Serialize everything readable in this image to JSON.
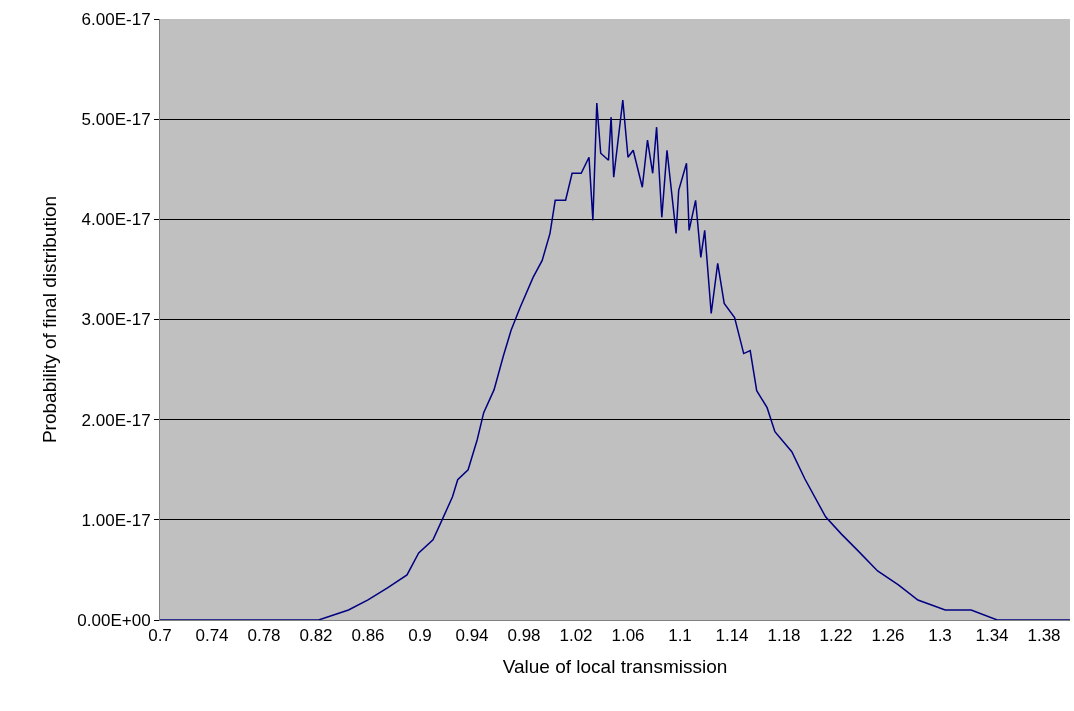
{
  "chart_data": {
    "type": "line",
    "xlabel": "Value of local transmission",
    "ylabel": "Probability of final distribution",
    "x": [
      0.7,
      0.71,
      0.74,
      0.777,
      0.815,
      0.822,
      0.845,
      0.86,
      0.875,
      0.89,
      0.899,
      0.91,
      0.917,
      0.925,
      0.929,
      0.937,
      0.944,
      0.949,
      0.957,
      0.964,
      0.97,
      0.977,
      0.987,
      0.994,
      1.0,
      1.004,
      1.012,
      1.017,
      1.024,
      1.03,
      1.033,
      1.036,
      1.039,
      1.045,
      1.047,
      1.049,
      1.056,
      1.06,
      1.064,
      1.071,
      1.075,
      1.079,
      1.082,
      1.086,
      1.09,
      1.097,
      1.099,
      1.105,
      1.107,
      1.112,
      1.116,
      1.119,
      1.124,
      1.129,
      1.134,
      1.142,
      1.149,
      1.154,
      1.159,
      1.167,
      1.173,
      1.186,
      1.196,
      1.212,
      1.224,
      1.237,
      1.252,
      1.268,
      1.283,
      1.304,
      1.324,
      1.344,
      1.37,
      1.391,
      1.4
    ],
    "series": [
      {
        "color": "#000080",
        "values": [
          0,
          0,
          0,
          0,
          0,
          0,
          1e-18,
          2e-18,
          3.2e-18,
          4.5e-18,
          6.7e-18,
          8e-18,
          1e-17,
          1.23e-17,
          1.4e-17,
          1.5e-17,
          1.8e-17,
          2.07e-17,
          2.3e-17,
          2.63e-17,
          2.89e-17,
          3.12e-17,
          3.42e-17,
          3.59e-17,
          3.86e-17,
          4.19e-17,
          4.19e-17,
          4.46e-17,
          4.46e-17,
          4.62e-17,
          3.99e-17,
          5.16e-17,
          4.66e-17,
          4.59e-17,
          5.02e-17,
          4.42e-17,
          5.19e-17,
          4.62e-17,
          4.69e-17,
          4.32e-17,
          4.79e-17,
          4.46e-17,
          4.92e-17,
          4.02e-17,
          4.69e-17,
          3.86e-17,
          4.29e-17,
          4.56e-17,
          3.89e-17,
          4.19e-17,
          3.62e-17,
          3.89e-17,
          3.06e-17,
          3.56e-17,
          3.16e-17,
          3.02e-17,
          2.66e-17,
          2.69e-17,
          2.29e-17,
          2.12e-17,
          1.88e-17,
          1.68e-17,
          1.41e-17,
          1.03e-17,
          8.6e-18,
          6.9e-18,
          4.9e-18,
          3.5e-18,
          2e-18,
          1e-18,
          1e-18,
          0,
          0,
          0,
          0
        ]
      }
    ],
    "xlim": [
      0.7,
      1.4
    ],
    "xticks": [
      0.7,
      0.74,
      0.78,
      0.82,
      0.86,
      0.9,
      0.94,
      0.98,
      1.02,
      1.06,
      1.1,
      1.14,
      1.18,
      1.22,
      1.26,
      1.3,
      1.34,
      1.38
    ],
    "ylim": [
      0,
      6e-17
    ],
    "yticks": [
      {
        "value": 0,
        "label": "0.00E+00"
      },
      {
        "value": 1e-17,
        "label": "1.00E-17"
      },
      {
        "value": 2e-17,
        "label": "2.00E-17"
      },
      {
        "value": 3e-17,
        "label": "3.00E-17"
      },
      {
        "value": 4e-17,
        "label": "4.00E-17"
      },
      {
        "value": 5e-17,
        "label": "5.00E-17"
      },
      {
        "value": 6e-17,
        "label": "6.00E-17"
      }
    ],
    "grid": "y",
    "marker": "none",
    "line_style": "solid"
  }
}
